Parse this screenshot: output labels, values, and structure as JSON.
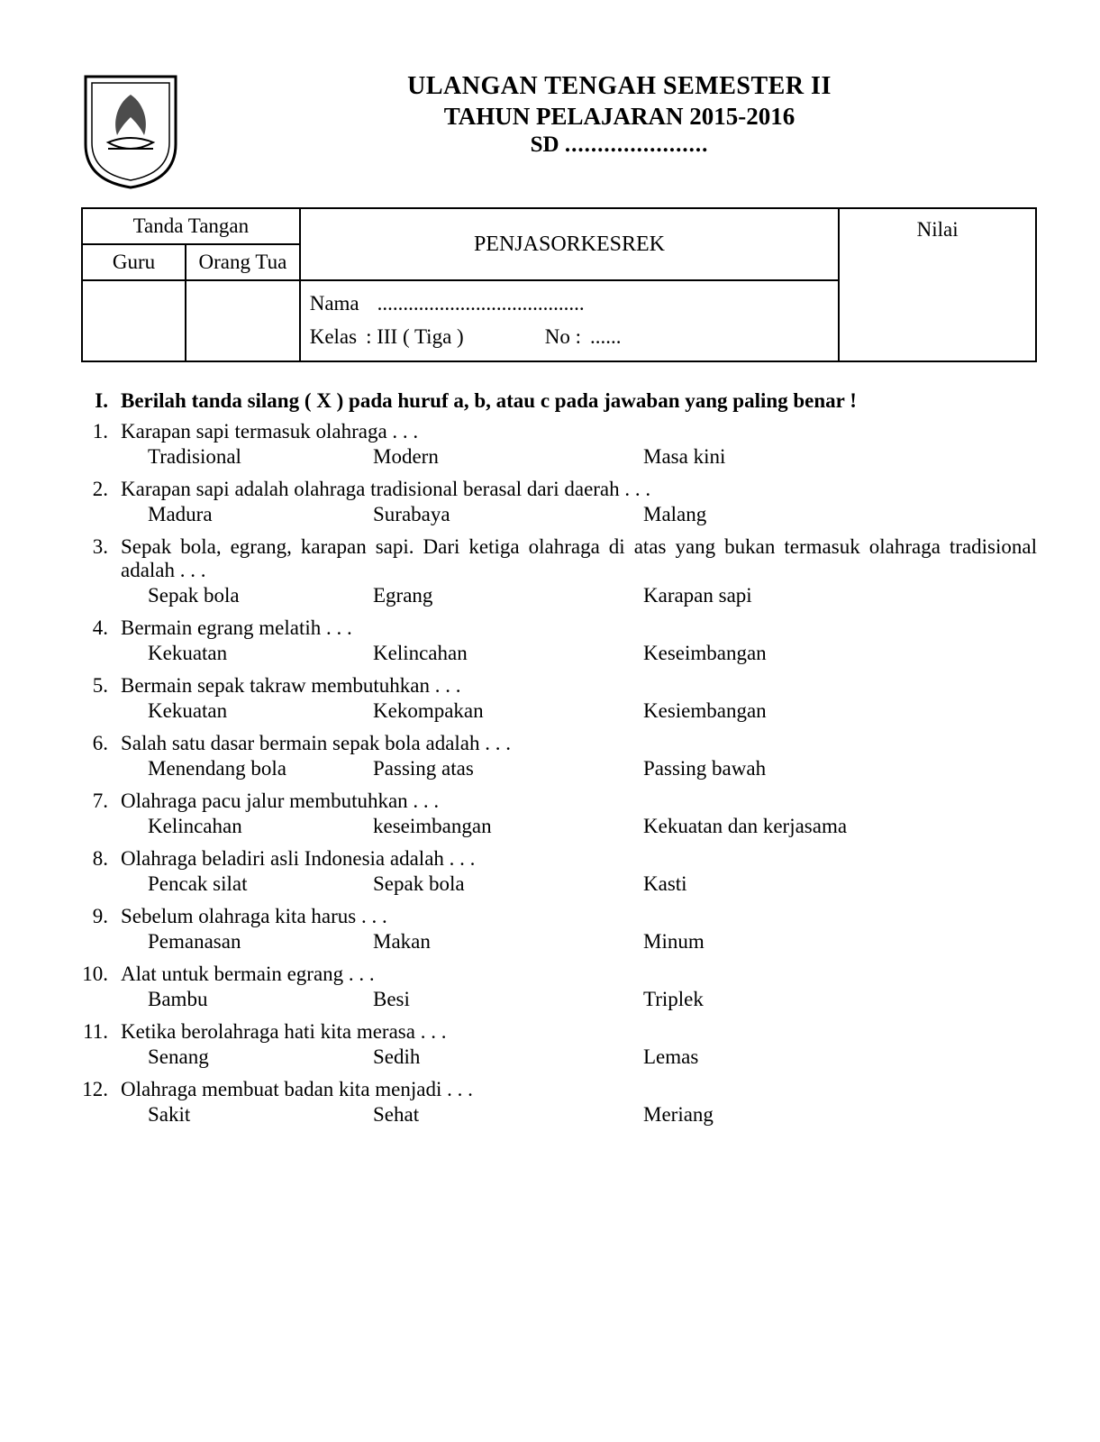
{
  "header": {
    "title_1": "ULANGAN TENGAH SEMESTER II",
    "title_2": "TAHUN PELAJARAN 2015-2016",
    "school_prefix": "SD",
    "school_dots": "......................"
  },
  "info": {
    "tanda_tangan_label": "Tanda Tangan",
    "guru_label": "Guru",
    "orangtua_label": "Orang Tua",
    "subject": "PENJASORKESREK",
    "nilai_label": "Nilai",
    "nama_label": "Nama",
    "nama_dots": "........................................",
    "kelas_label": "Kelas",
    "kelas_value": ": III ( Tiga )",
    "no_label": "No :",
    "no_dots": "......"
  },
  "section": {
    "roman": "I.",
    "instruction": "Berilah tanda silang ( X ) pada huruf a, b, atau c pada jawaban yang paling benar !"
  },
  "questions": [
    {
      "n": "1.",
      "text": "Karapan sapi termasuk olahraga . . .",
      "a": "Tradisional",
      "b": "Modern",
      "c": "Masa kini"
    },
    {
      "n": "2.",
      "text": "Karapan sapi adalah olahraga tradisional berasal dari daerah . . .",
      "a": "Madura",
      "b": "Surabaya",
      "c": "Malang"
    },
    {
      "n": "3.",
      "text": "Sepak bola, egrang, karapan sapi. Dari ketiga olahraga di atas yang bukan termasuk olahraga tradisional adalah . . .",
      "a": "Sepak bola",
      "b": "Egrang",
      "c": "Karapan sapi"
    },
    {
      "n": "4.",
      "text": "Bermain egrang melatih . . .",
      "a": "Kekuatan",
      "b": "Kelincahan",
      "c": "Keseimbangan"
    },
    {
      "n": "5.",
      "text": "Bermain sepak takraw membutuhkan . . .",
      "a": "Kekuatan",
      "b": "Kekompakan",
      "c": "Kesiembangan"
    },
    {
      "n": "6.",
      "text": "Salah satu dasar bermain sepak bola adalah . . .",
      "a": "Menendang bola",
      "b": "Passing atas",
      "c": "Passing bawah"
    },
    {
      "n": "7.",
      "text": "Olahraga pacu jalur membutuhkan . . .",
      "a": "Kelincahan",
      "b": "keseimbangan",
      "c": "Kekuatan dan kerjasama"
    },
    {
      "n": "8.",
      "text": "Olahraga beladiri asli Indonesia adalah . . .",
      "a": "Pencak silat",
      "b": "Sepak bola",
      "c": "Kasti"
    },
    {
      "n": "9.",
      "text": "Sebelum olahraga kita harus . . .",
      "a": "Pemanasan",
      "b": "Makan",
      "c": "Minum"
    },
    {
      "n": "10.",
      "text": "Alat untuk bermain egrang . . .",
      "a": "Bambu",
      "b": "Besi",
      "c": "Triplek"
    },
    {
      "n": "11.",
      "text": "Ketika berolahraga hati kita merasa . . .",
      "a": "Senang",
      "b": "Sedih",
      "c": "Lemas"
    },
    {
      "n": "12.",
      "text": "Olahraga membuat badan kita menjadi . . .",
      "a": "Sakit",
      "b": "Sehat",
      "c": "Meriang"
    }
  ]
}
